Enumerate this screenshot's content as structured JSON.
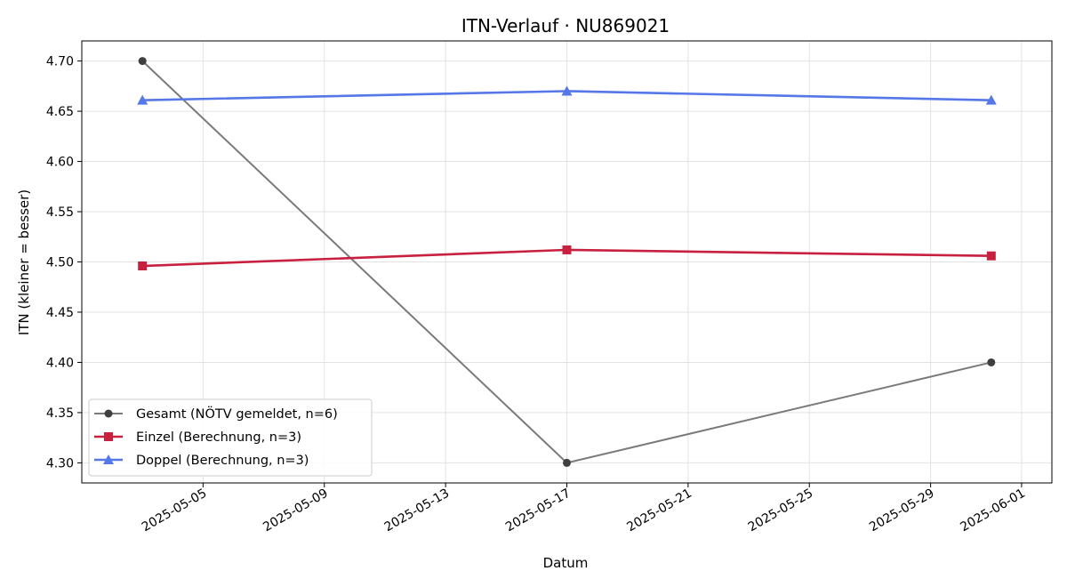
{
  "chart_data": {
    "type": "line",
    "title": "ITN-Verlauf · NU869021",
    "xlabel": "Datum",
    "ylabel": "ITN  (kleiner = besser)",
    "x_is_date": true,
    "xlim": [
      "2025-05-01",
      "2025-06-02"
    ],
    "ylim": [
      4.28,
      4.72
    ],
    "x_ticks": [
      "2025-05-05",
      "2025-05-09",
      "2025-05-13",
      "2025-05-17",
      "2025-05-21",
      "2025-05-25",
      "2025-05-29",
      "2025-06-01"
    ],
    "y_ticks": [
      4.3,
      4.35,
      4.4,
      4.45,
      4.5,
      4.55,
      4.6,
      4.65,
      4.7
    ],
    "grid": true,
    "legend_position": "lower-left",
    "series": [
      {
        "name": "Gesamt (NÖTV gemeldet, n=6)",
        "color": "#7a7a7a",
        "marker_color": "#3f3f3f",
        "marker": "circle",
        "x": [
          "2025-05-03",
          "2025-05-17",
          "2025-05-31"
        ],
        "y": [
          4.7,
          4.3,
          4.4
        ]
      },
      {
        "name": "Einzel (Berechnung, n=3)",
        "color": "#c8203f",
        "marker_color": "#c8203f",
        "marker": "square",
        "x": [
          "2025-05-03",
          "2025-05-17",
          "2025-05-31"
        ],
        "y": [
          4.496,
          4.512,
          4.506
        ]
      },
      {
        "name": "Doppel (Berechnung, n=3)",
        "color": "#5577e8",
        "marker_color": "#5577e8",
        "marker": "triangle",
        "x": [
          "2025-05-03",
          "2025-05-17",
          "2025-05-31"
        ],
        "y": [
          4.661,
          4.67,
          4.661
        ]
      }
    ]
  }
}
